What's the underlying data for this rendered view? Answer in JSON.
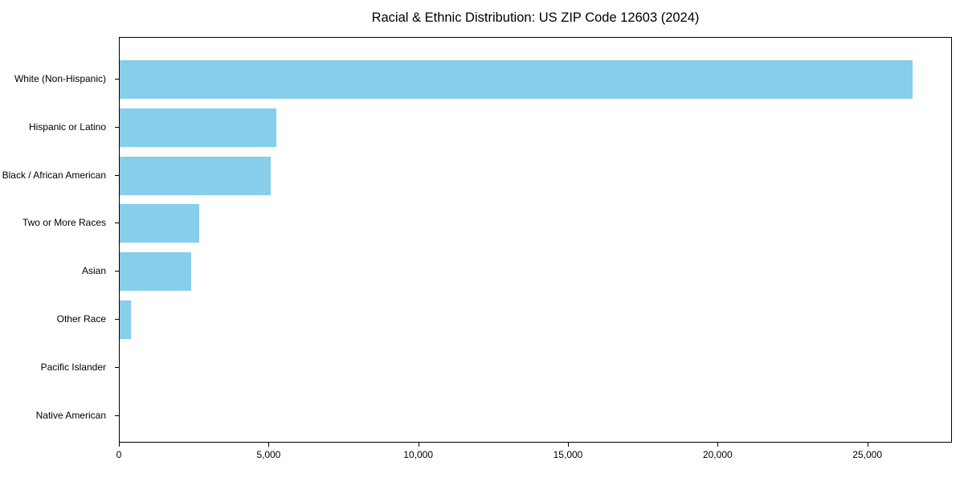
{
  "title": "Racial & Ethnic Distribution: US ZIP Code 12603 (2024)",
  "chart_data": {
    "type": "bar",
    "orientation": "horizontal",
    "title": "Racial & Ethnic Distribution: US ZIP Code 12603 (2024)",
    "categories": [
      "White (Non-Hispanic)",
      "Hispanic or Latino",
      "Black / African American",
      "Two or More Races",
      "Asian",
      "Other Race",
      "Pacific Islander",
      "Native American"
    ],
    "values": [
      26500,
      5250,
      5050,
      2660,
      2400,
      380,
      0,
      0
    ],
    "xlabel": "",
    "ylabel": "",
    "xlim": [
      0,
      27800
    ],
    "x_ticks": [
      0,
      5000,
      10000,
      15000,
      20000,
      25000
    ],
    "x_tick_labels": [
      "0",
      "5,000",
      "10,000",
      "15,000",
      "20,000",
      "25,000"
    ],
    "bar_color": "#87CEEB",
    "background_color": "#ffffff",
    "axis_color": "#000000",
    "grid": false,
    "legend": false
  }
}
